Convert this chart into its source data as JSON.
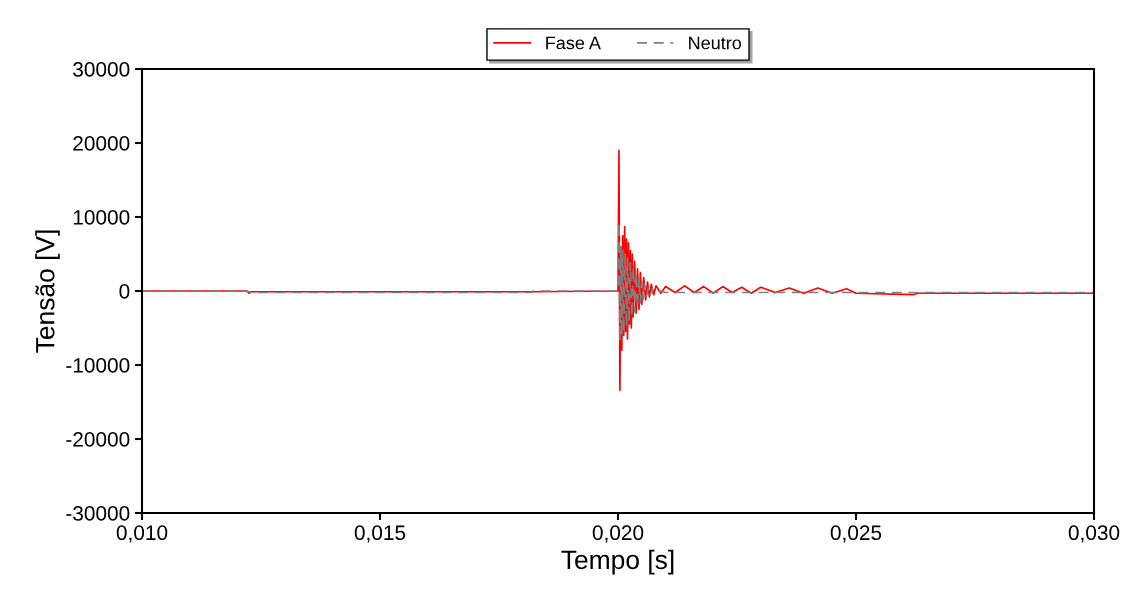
{
  "chart_data": {
    "type": "line",
    "xlabel": "Tempo [s]",
    "ylabel": "Tensão [V]",
    "xlim": [
      0.01,
      0.03
    ],
    "xticks": [
      {
        "value": 0.01,
        "label": "0,010"
      },
      {
        "value": 0.015,
        "label": "0,015"
      },
      {
        "value": 0.02,
        "label": "0,020"
      },
      {
        "value": 0.025,
        "label": "0,025"
      },
      {
        "value": 0.03,
        "label": "0,030"
      }
    ],
    "ylim": [
      -30000,
      30000
    ],
    "yticks": [
      -30000,
      -20000,
      -10000,
      0,
      10000,
      20000,
      30000
    ],
    "grid": false,
    "legend": "top",
    "marker": "none",
    "series": [
      {
        "name": "Fase A",
        "color": "#ff0000",
        "line_style": "solid",
        "x": [
          0.01,
          0.0122,
          0.01225,
          0.0123,
          0.0182,
          0.02,
          0.02002,
          0.02004,
          0.02006,
          0.02008,
          0.0201,
          0.02012,
          0.02014,
          0.02016,
          0.02018,
          0.0202,
          0.02022,
          0.02024,
          0.02026,
          0.02028,
          0.0203,
          0.02032,
          0.02035,
          0.02038,
          0.02041,
          0.02044,
          0.02047,
          0.0205,
          0.02054,
          0.02058,
          0.02062,
          0.02066,
          0.0207,
          0.02075,
          0.0208,
          0.0209,
          0.021,
          0.0212,
          0.0214,
          0.0216,
          0.0218,
          0.022,
          0.0222,
          0.0224,
          0.0226,
          0.0228,
          0.023,
          0.0233,
          0.0236,
          0.0239,
          0.0242,
          0.0245,
          0.0248,
          0.025,
          0.0262,
          0.0263,
          0.03
        ],
        "values": [
          0,
          0,
          -300,
          -100,
          -100,
          0,
          19000,
          -13400,
          6000,
          -8000,
          7500,
          -6000,
          8700,
          -5500,
          7000,
          -6500,
          6500,
          -4500,
          5500,
          -5000,
          5000,
          -3500,
          4000,
          -3000,
          3000,
          -2500,
          2500,
          -1800,
          1800,
          -1200,
          1200,
          -800,
          900,
          -500,
          700,
          -300,
          600,
          -200,
          700,
          -200,
          600,
          -300,
          600,
          -200,
          500,
          -300,
          500,
          -200,
          400,
          -300,
          400,
          -300,
          300,
          -300,
          -500,
          -300,
          -300
        ]
      },
      {
        "name": "Neutro",
        "color": "#808080",
        "line_style": "dashed",
        "x": [
          0.01,
          0.0122,
          0.0123,
          0.0182,
          0.01821,
          0.02,
          0.02002,
          0.02004,
          0.02006,
          0.02008,
          0.0201,
          0.02012,
          0.02015,
          0.02018,
          0.0202,
          0.02023,
          0.02026,
          0.02029,
          0.02032,
          0.02035,
          0.02038,
          0.02041,
          0.02044,
          0.02047,
          0.0205,
          0.02053,
          0.02056,
          0.0206,
          0.02064,
          0.02068,
          0.02072,
          0.02078,
          0.0209,
          0.021,
          0.03
        ],
        "values": [
          0,
          0,
          -200,
          -200,
          0,
          0,
          9300,
          -6800,
          6000,
          -6000,
          5500,
          -5500,
          5000,
          -4800,
          4500,
          -4200,
          3800,
          -3500,
          3200,
          -2800,
          2500,
          -2200,
          1800,
          -1600,
          1300,
          -1100,
          900,
          -700,
          500,
          -500,
          300,
          -300,
          0,
          -200,
          -200
        ]
      }
    ]
  }
}
